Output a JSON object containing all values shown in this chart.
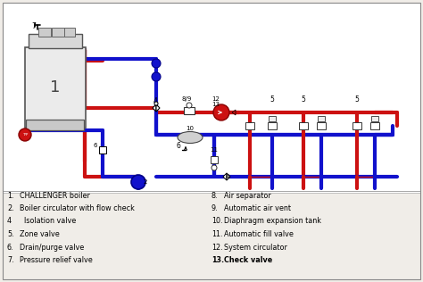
{
  "bg_color": "#f0ede8",
  "diagram_bg": "#ffffff",
  "red": "#cc1111",
  "blue": "#1111cc",
  "pipe_lw": 3.0,
  "legend_items_left": [
    [
      "1.",
      "CHALLENGER boiler"
    ],
    [
      "2.",
      "Boiler circulator with flow check"
    ],
    [
      "4",
      "  Isolation valve"
    ],
    [
      "5.",
      "Zone valve"
    ],
    [
      "6.",
      "Drain/purge valve"
    ],
    [
      "7.",
      "Pressure relief valve"
    ]
  ],
  "legend_items_right": [
    [
      "8.",
      "Air separator"
    ],
    [
      "9.",
      "Automatic air vent"
    ],
    [
      "10.",
      "Diaphragm expansion tank"
    ],
    [
      "11.",
      "Automatic fill valve"
    ],
    [
      "12.",
      "System circulator"
    ],
    [
      "13.",
      "Check valve"
    ]
  ],
  "legend_bold_indices_right": [
    5
  ],
  "legend_bold_indices_left": []
}
